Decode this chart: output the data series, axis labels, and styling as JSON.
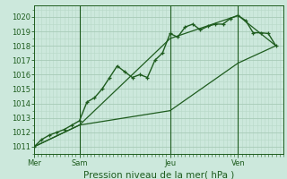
{
  "bg_color": "#cce8dc",
  "grid_major_color": "#a8cbb8",
  "grid_minor_color": "#b8d8c8",
  "line_color": "#1e5c1e",
  "title": "Pression niveau de la mer( hPa )",
  "ylim": [
    1010.5,
    1020.8
  ],
  "yticks": [
    1011,
    1012,
    1013,
    1014,
    1015,
    1016,
    1017,
    1018,
    1019,
    1020
  ],
  "day_labels": [
    "Mer",
    "Sam",
    "Jeu",
    "Ven"
  ],
  "day_positions": [
    0,
    12,
    36,
    54
  ],
  "vline_positions": [
    12,
    36,
    54
  ],
  "xmax": 66,
  "line1_x": [
    0,
    2,
    4,
    6,
    8,
    10,
    12,
    14,
    16,
    18,
    20,
    22,
    24,
    26,
    28,
    30,
    32,
    34,
    36,
    38,
    40,
    42,
    44,
    46,
    48,
    50,
    52,
    54,
    56,
    58,
    60,
    62,
    64
  ],
  "line1_y": [
    1011.0,
    1011.5,
    1011.8,
    1012.0,
    1012.2,
    1012.5,
    1012.8,
    1014.1,
    1014.4,
    1015.0,
    1015.8,
    1016.6,
    1016.2,
    1015.8,
    1016.0,
    1015.8,
    1017.0,
    1017.5,
    1018.85,
    1018.6,
    1019.3,
    1019.5,
    1019.1,
    1019.35,
    1019.5,
    1019.5,
    1019.9,
    1020.1,
    1019.75,
    1018.9,
    1018.9,
    1018.85,
    1018.0
  ],
  "line2_x": [
    0,
    12,
    36,
    54,
    64
  ],
  "line2_y": [
    1011.0,
    1012.5,
    1018.5,
    1020.1,
    1018.0
  ],
  "line3_x": [
    0,
    12,
    36,
    54,
    64
  ],
  "line3_y": [
    1011.0,
    1012.5,
    1013.5,
    1016.8,
    1018.0
  ],
  "title_fontsize": 7.5,
  "tick_fontsize": 6.0
}
